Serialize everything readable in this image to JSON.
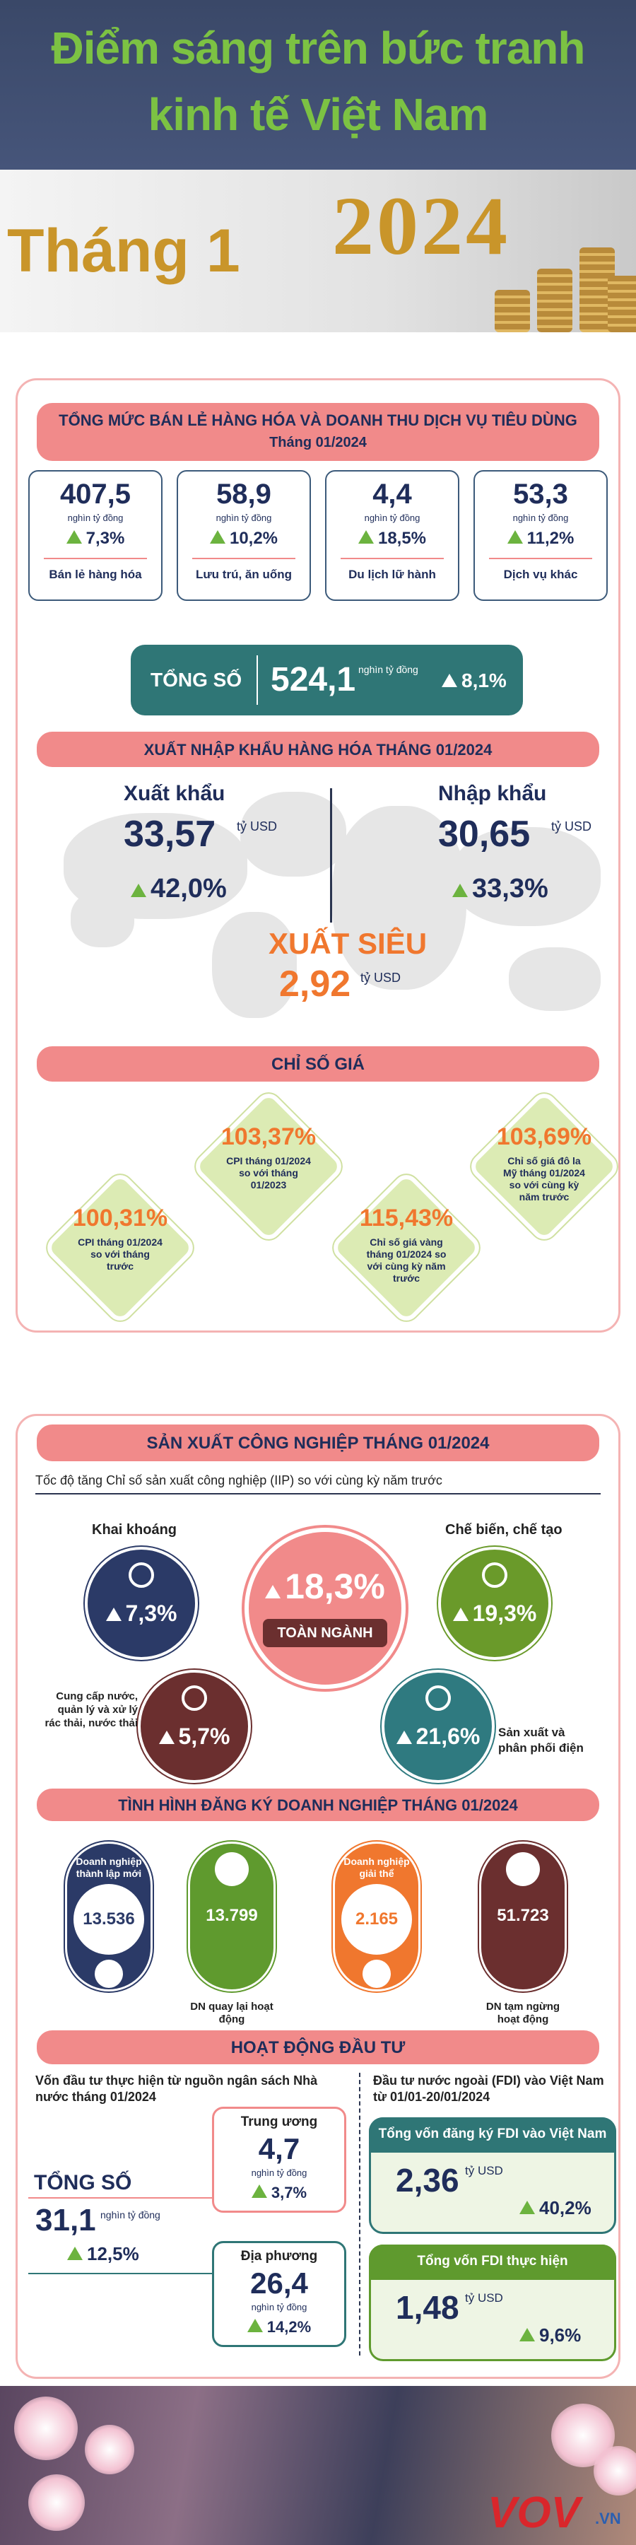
{
  "header": {
    "title_line1": "Điểm sáng trên bức tranh",
    "title_line2": "kinh tế Việt Nam",
    "month": "Tháng 1",
    "year": "2024"
  },
  "retail": {
    "title": "TỔNG MỨC BÁN LẺ HÀNG HÓA VÀ DOANH THU DỊCH VỤ TIÊU DÙNG",
    "subtitle": "Tháng 01/2024",
    "items": [
      {
        "value": "407,5",
        "unit": "nghìn tỷ đồng",
        "growth": "7,3%",
        "label": "Bán lẻ hàng hóa"
      },
      {
        "value": "58,9",
        "unit": "nghìn tỷ đồng",
        "growth": "10,2%",
        "label": "Lưu trú, ăn uống"
      },
      {
        "value": "4,4",
        "unit": "nghìn tỷ đồng",
        "growth": "18,5%",
        "label": "Du lịch lữ hành"
      },
      {
        "value": "53,3",
        "unit": "nghìn tỷ đồng",
        "growth": "11,2%",
        "label": "Dịch vụ khác"
      }
    ],
    "total": {
      "label": "TỔNG SỐ",
      "value": "524,1",
      "unit": "nghìn tỷ đồng",
      "growth": "8,1%"
    }
  },
  "trade": {
    "title": "XUẤT NHẬP KHẨU HÀNG HÓA THÁNG 01/2024",
    "export": {
      "label": "Xuất khẩu",
      "value": "33,57",
      "unit": "tỷ USD",
      "growth": "42,0%"
    },
    "import": {
      "label": "Nhập khẩu",
      "value": "30,65",
      "unit": "tỷ USD",
      "growth": "33,3%"
    },
    "surplus": {
      "label": "XUẤT SIÊU",
      "value": "2,92",
      "unit": "tỷ USD"
    }
  },
  "prices": {
    "title": "CHỈ SỐ GIÁ",
    "items": [
      {
        "value": "103,37%",
        "label": "CPI tháng 01/2024 so với tháng 01/2023"
      },
      {
        "value": "100,31%",
        "label": "CPI tháng 01/2024 so với tháng trước"
      },
      {
        "value": "115,43%",
        "label": "Chỉ số giá vàng tháng 01/2024 so với cùng kỳ năm trước"
      },
      {
        "value": "103,69%",
        "label": "Chỉ số giá đô la Mỹ tháng 01/2024 so với cùng kỳ năm trước"
      }
    ]
  },
  "industry": {
    "title": "SẢN XUẤT CÔNG NGHIỆP THÁNG 01/2024",
    "subtitle": "Tốc độ tăng Chỉ số sản xuất công nghiệp (IIP) so với cùng kỳ năm trước",
    "total": {
      "value": "18,3%",
      "label": "TOÀN NGÀNH"
    },
    "sectors": [
      {
        "label": "Khai khoáng",
        "value": "7,3%"
      },
      {
        "label": "Chế biến, chế tạo",
        "value": "19,3%"
      },
      {
        "label": "Cung cấp nước, quản lý và xử lý rác thải, nước thải",
        "value": "5,7%"
      },
      {
        "label": "Sản xuất và phân phối điện",
        "value": "21,6%"
      }
    ]
  },
  "enterprise": {
    "title": "TÌNH HÌNH ĐĂNG KÝ DOANH NGHIỆP THÁNG 01/2024",
    "items": [
      {
        "label": "Doanh nghiệp thành lập mới",
        "value": "13.536"
      },
      {
        "label": "DN quay lại hoạt động",
        "value": "13.799"
      },
      {
        "label": "Doanh nghiệp giải thể",
        "value": "2.165"
      },
      {
        "label": "DN tạm ngừng hoạt động",
        "value": "51.723"
      }
    ]
  },
  "investment": {
    "title": "HOẠT ĐỘNG ĐẦU TƯ",
    "state": {
      "heading": "Vốn đầu tư thực hiện từ nguồn ngân sách Nhà nước tháng 01/2024",
      "total": {
        "label": "TỔNG SỐ",
        "value": "31,1",
        "unit": "nghìn tỷ đồng",
        "growth": "12,5%"
      },
      "central": {
        "label": "Trung ương",
        "value": "4,7",
        "unit": "nghìn tỷ đồng",
        "growth": "3,7%"
      },
      "local": {
        "label": "Địa phương",
        "value": "26,4",
        "unit": "nghìn tỷ đồng",
        "growth": "14,2%"
      }
    },
    "fdi": {
      "heading": "Đầu tư nước ngoài (FDI) vào Việt Nam từ 01/01-20/01/2024",
      "registered": {
        "label": "Tổng vốn đăng ký FDI vào Việt Nam",
        "value": "2,36",
        "unit": "tỷ USD",
        "growth": "40,2%"
      },
      "disbursed": {
        "label": "Tổng vốn FDI thực hiện",
        "value": "1,48",
        "unit": "tỷ USD",
        "growth": "9,6%"
      }
    }
  },
  "footer": {
    "logo": "VOV",
    "logo_suffix": ".VN"
  }
}
